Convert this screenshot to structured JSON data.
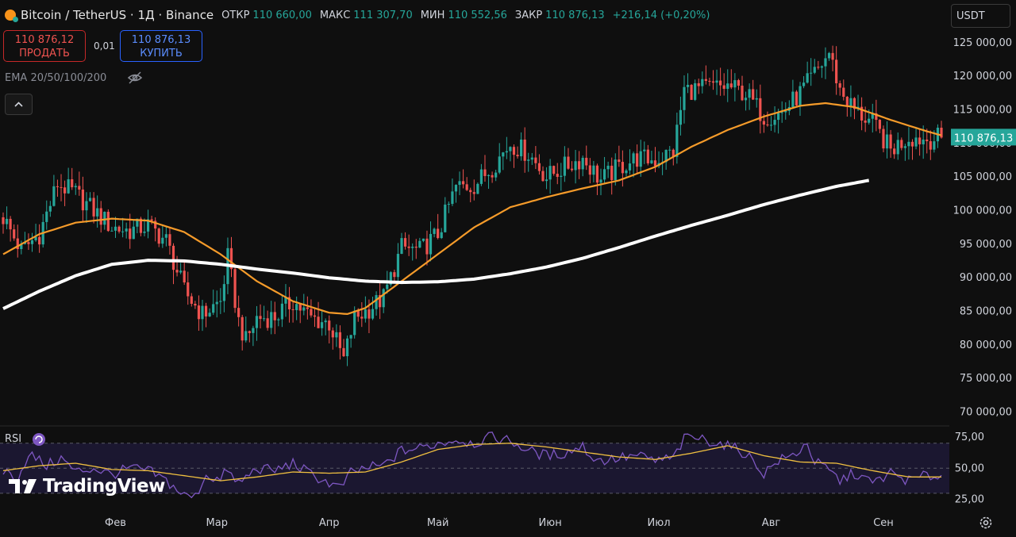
{
  "header": {
    "title": "Bitcoin / TetherUS · 1Д · Binance",
    "open_label": "ОТКР",
    "open": "110 660,00",
    "high_label": "МАКС",
    "high": "111 307,70",
    "low_label": "МИН",
    "low": "110 552,56",
    "close_label": "ЗАКР",
    "close": "110 876,13",
    "change": "+216,14 (+0,20%)"
  },
  "trade": {
    "sell_price": "110 876,12",
    "sell_label": "ПРОДАТЬ",
    "spread": "0,01",
    "buy_price": "110 876,13",
    "buy_label": "КУПИТЬ"
  },
  "indicator": {
    "ema_label": "EMA 20/50/100/200"
  },
  "currency": "USDT",
  "rsi": {
    "label": "RSI"
  },
  "brand": {
    "logo_text": "TradingView"
  },
  "colors": {
    "up": "#26a69a",
    "down": "#ef5350",
    "ema_fast": "#f59b2a",
    "ema_slow": "#ffffff",
    "rsi_line": "#7e57c2",
    "rsi_ma": "#f0c040",
    "price_tag": "#26a69a"
  },
  "chart_data": {
    "type": "candlestick",
    "title": "Bitcoin / TetherUS · 1Д · Binance",
    "y_ticks": [
      "70 000,00",
      "75 000,00",
      "80 000,00",
      "85 000,00",
      "90 000,00",
      "95 000,00",
      "100 000,00",
      "105 000,00",
      "110 000,00",
      "115 000,00",
      "120 000,00",
      "125 000,00"
    ],
    "y_tick_values": [
      70000,
      75000,
      80000,
      85000,
      90000,
      95000,
      100000,
      105000,
      110000,
      115000,
      120000,
      125000
    ],
    "ylim": [
      69000,
      125800
    ],
    "x_labels": [
      "Фев",
      "Мар",
      "Апр",
      "Май",
      "Июн",
      "Июл",
      "Авг",
      "Сен"
    ],
    "x_label_day_index": [
      31,
      59,
      90,
      120,
      151,
      181,
      212,
      243
    ],
    "day_range": [
      0,
      259
    ],
    "last_price_label": "110 876,13",
    "last_price": 110876,
    "close_anchors": [
      [
        0,
        99000
      ],
      [
        5,
        94000
      ],
      [
        10,
        96500
      ],
      [
        15,
        104000
      ],
      [
        20,
        102500
      ],
      [
        25,
        100000
      ],
      [
        30,
        97500
      ],
      [
        35,
        97000
      ],
      [
        40,
        97800
      ],
      [
        45,
        95500
      ],
      [
        50,
        88000
      ],
      [
        55,
        84500
      ],
      [
        60,
        86500
      ],
      [
        62,
        93000
      ],
      [
        65,
        83500
      ],
      [
        67,
        80500
      ],
      [
        70,
        84000
      ],
      [
        75,
        84200
      ],
      [
        80,
        86500
      ],
      [
        85,
        84000
      ],
      [
        90,
        83200
      ],
      [
        94,
        77800
      ],
      [
        97,
        84000
      ],
      [
        100,
        85000
      ],
      [
        105,
        87000
      ],
      [
        110,
        94500
      ],
      [
        115,
        94000
      ],
      [
        120,
        96500
      ],
      [
        125,
        103500
      ],
      [
        130,
        103800
      ],
      [
        135,
        106500
      ],
      [
        140,
        110000
      ],
      [
        145,
        108500
      ],
      [
        150,
        105000
      ],
      [
        155,
        106500
      ],
      [
        160,
        107800
      ],
      [
        165,
        104500
      ],
      [
        170,
        106500
      ],
      [
        175,
        107800
      ],
      [
        180,
        107500
      ],
      [
        185,
        108800
      ],
      [
        188,
        118000
      ],
      [
        190,
        118000
      ],
      [
        195,
        118300
      ],
      [
        200,
        118500
      ],
      [
        205,
        117500
      ],
      [
        210,
        114000
      ],
      [
        215,
        114500
      ],
      [
        220,
        117500
      ],
      [
        225,
        121000
      ],
      [
        228,
        123500
      ],
      [
        231,
        118000
      ],
      [
        235,
        115000
      ],
      [
        240,
        113000
      ],
      [
        245,
        109000
      ],
      [
        250,
        111000
      ],
      [
        255,
        110600
      ],
      [
        259,
        110876
      ]
    ],
    "ema50_anchors": [
      [
        0,
        93500
      ],
      [
        10,
        96500
      ],
      [
        20,
        98200
      ],
      [
        30,
        98800
      ],
      [
        40,
        98500
      ],
      [
        50,
        96800
      ],
      [
        60,
        93500
      ],
      [
        70,
        89500
      ],
      [
        80,
        86500
      ],
      [
        90,
        84800
      ],
      [
        95,
        84600
      ],
      [
        100,
        85500
      ],
      [
        110,
        89500
      ],
      [
        120,
        93500
      ],
      [
        130,
        97500
      ],
      [
        140,
        100500
      ],
      [
        150,
        102000
      ],
      [
        160,
        103300
      ],
      [
        170,
        104500
      ],
      [
        180,
        106500
      ],
      [
        190,
        109500
      ],
      [
        200,
        112000
      ],
      [
        210,
        114000
      ],
      [
        220,
        115600
      ],
      [
        227,
        116000
      ],
      [
        235,
        115400
      ],
      [
        245,
        113500
      ],
      [
        255,
        111800
      ],
      [
        259,
        111200
      ]
    ],
    "ema200_anchors": [
      [
        0,
        85400
      ],
      [
        10,
        88000
      ],
      [
        20,
        90300
      ],
      [
        30,
        92000
      ],
      [
        40,
        92600
      ],
      [
        50,
        92500
      ],
      [
        60,
        92000
      ],
      [
        70,
        91300
      ],
      [
        80,
        90700
      ],
      [
        90,
        90000
      ],
      [
        100,
        89500
      ],
      [
        110,
        89300
      ],
      [
        120,
        89400
      ],
      [
        130,
        89800
      ],
      [
        140,
        90600
      ],
      [
        150,
        91600
      ],
      [
        160,
        92900
      ],
      [
        170,
        94500
      ],
      [
        180,
        96200
      ],
      [
        190,
        97800
      ],
      [
        200,
        99300
      ],
      [
        210,
        100900
      ],
      [
        220,
        102300
      ],
      [
        230,
        103600
      ],
      [
        239,
        104500
      ]
    ],
    "rsi": {
      "y_ticks": [
        "75,00",
        "50,00",
        "25,00"
      ],
      "y_tick_values": [
        75,
        50,
        25
      ],
      "upper_band": 70,
      "lower_band": 30,
      "ylim": [
        21,
        80
      ],
      "line_anchors": [
        [
          0,
          48
        ],
        [
          4,
          42
        ],
        [
          6,
          55
        ],
        [
          8,
          60
        ],
        [
          12,
          52
        ],
        [
          16,
          58
        ],
        [
          20,
          47
        ],
        [
          25,
          50
        ],
        [
          30,
          45
        ],
        [
          35,
          50
        ],
        [
          40,
          48
        ],
        [
          45,
          40
        ],
        [
          50,
          28
        ],
        [
          53,
          27
        ],
        [
          56,
          45
        ],
        [
          60,
          40
        ],
        [
          62,
          50
        ],
        [
          64,
          38
        ],
        [
          66,
          40
        ],
        [
          70,
          50
        ],
        [
          75,
          48
        ],
        [
          80,
          54
        ],
        [
          85,
          45
        ],
        [
          90,
          38
        ],
        [
          93,
          34
        ],
        [
          96,
          46
        ],
        [
          100,
          50
        ],
        [
          105,
          52
        ],
        [
          110,
          64
        ],
        [
          115,
          66
        ],
        [
          120,
          70
        ],
        [
          125,
          73
        ],
        [
          130,
          70
        ],
        [
          135,
          75
        ],
        [
          138,
          73
        ],
        [
          140,
          72
        ],
        [
          145,
          64
        ],
        [
          150,
          60
        ],
        [
          155,
          62
        ],
        [
          160,
          68
        ],
        [
          162,
          60
        ],
        [
          165,
          56
        ],
        [
          170,
          58
        ],
        [
          175,
          60
        ],
        [
          180,
          56
        ],
        [
          185,
          58
        ],
        [
          188,
          73
        ],
        [
          190,
          75
        ],
        [
          195,
          72
        ],
        [
          200,
          68
        ],
        [
          205,
          62
        ],
        [
          210,
          46
        ],
        [
          214,
          56
        ],
        [
          218,
          60
        ],
        [
          222,
          70
        ],
        [
          224,
          55
        ],
        [
          228,
          48
        ],
        [
          231,
          40
        ],
        [
          235,
          46
        ],
        [
          240,
          38
        ],
        [
          245,
          46
        ],
        [
          250,
          40
        ],
        [
          255,
          44
        ],
        [
          259,
          44
        ]
      ],
      "ma_anchors": [
        [
          0,
          48
        ],
        [
          10,
          52
        ],
        [
          20,
          54
        ],
        [
          30,
          49
        ],
        [
          40,
          48
        ],
        [
          50,
          44
        ],
        [
          60,
          40
        ],
        [
          70,
          43
        ],
        [
          80,
          47
        ],
        [
          90,
          46
        ],
        [
          100,
          47
        ],
        [
          110,
          55
        ],
        [
          120,
          65
        ],
        [
          130,
          69
        ],
        [
          140,
          70
        ],
        [
          150,
          67
        ],
        [
          160,
          63
        ],
        [
          170,
          59
        ],
        [
          180,
          57
        ],
        [
          190,
          62
        ],
        [
          200,
          68
        ],
        [
          210,
          60
        ],
        [
          220,
          55
        ],
        [
          230,
          54
        ],
        [
          240,
          48
        ],
        [
          250,
          43
        ],
        [
          259,
          43
        ]
      ]
    }
  }
}
